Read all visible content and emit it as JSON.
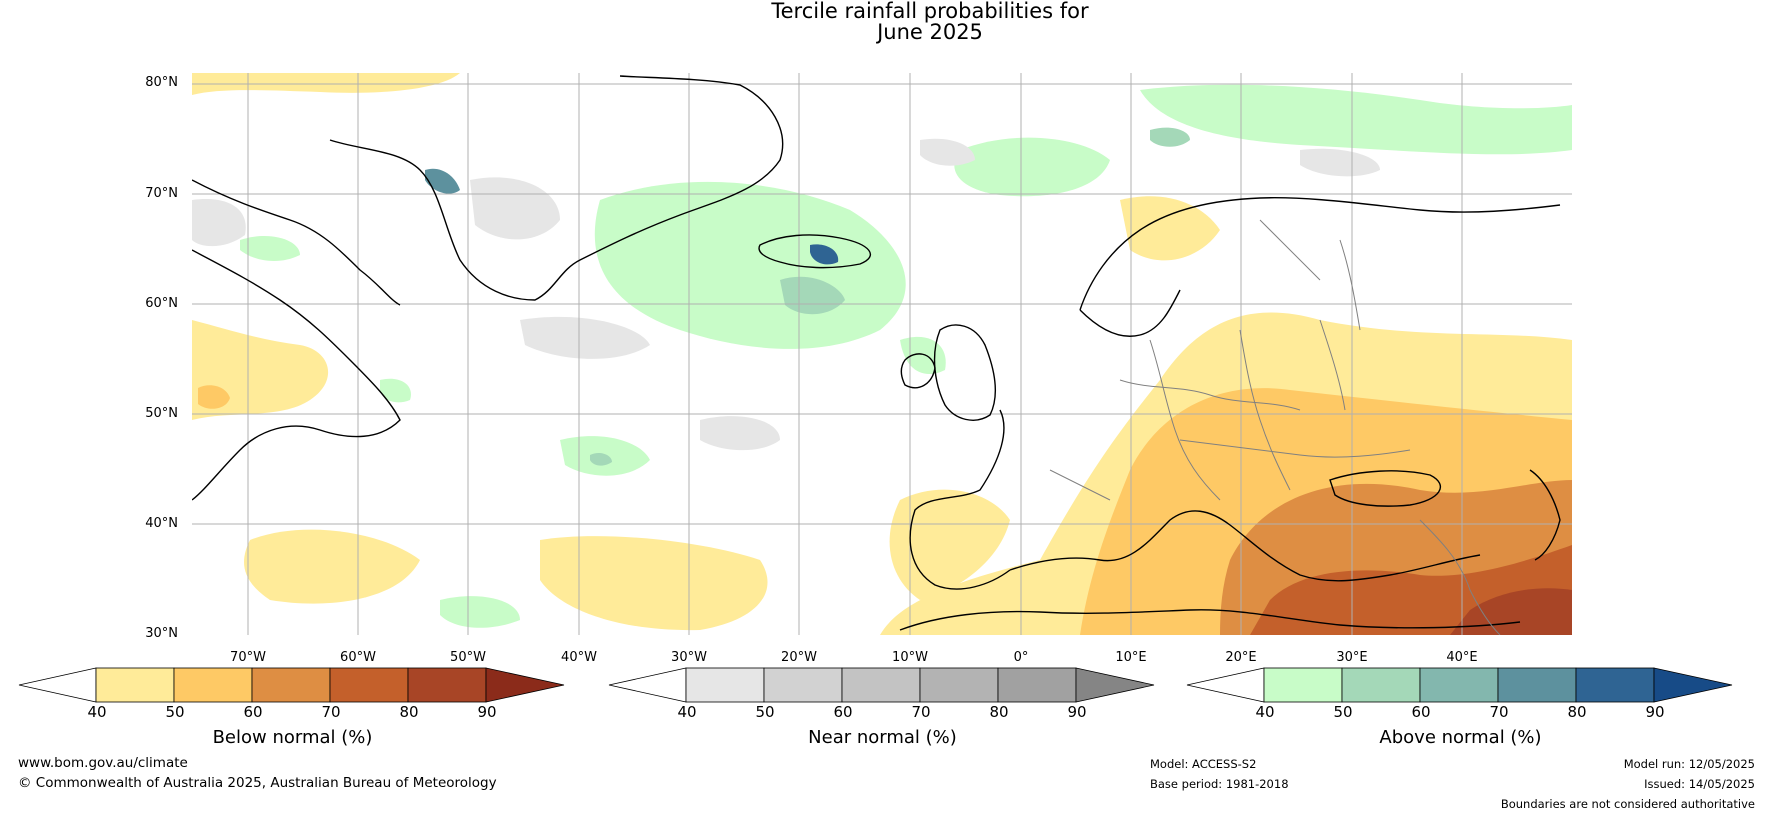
{
  "title": {
    "line1": "Tercile rainfall probabilities for",
    "line2": "June 2025"
  },
  "map": {
    "latitudes": [
      "80°N",
      "70°N",
      "60°N",
      "50°N",
      "40°N",
      "30°N"
    ],
    "longitudes": [
      "70°W",
      "60°W",
      "50°W",
      "40°W",
      "30°W",
      "20°W",
      "10°W",
      "0°",
      "10°E",
      "20°E",
      "30°E",
      "40°E"
    ],
    "ocean_color": "#ffffff",
    "coast_color": "#000000",
    "border_color": "#808080"
  },
  "colorbars": [
    {
      "name": "below",
      "title": "Below normal (%)",
      "ticks": [
        "40",
        "50",
        "60",
        "70",
        "80",
        "90"
      ],
      "under_color": "#ffffff",
      "colors": [
        "#ffeb99",
        "#fec965",
        "#de8e43",
        "#c4602b",
        "#a84526"
      ],
      "over_color": "#8b2b1a"
    },
    {
      "name": "near",
      "title": "Near normal (%)",
      "ticks": [
        "40",
        "50",
        "60",
        "70",
        "80",
        "90"
      ],
      "under_color": "#ffffff",
      "colors": [
        "#e6e6e6",
        "#d2d2d2",
        "#c3c3c3",
        "#b3b3b3",
        "#a1a1a1"
      ],
      "over_color": "#858585"
    },
    {
      "name": "above",
      "title": "Above normal (%)",
      "ticks": [
        "40",
        "50",
        "60",
        "70",
        "80",
        "90"
      ],
      "under_color": "#ffffff",
      "colors": [
        "#c8fcc8",
        "#a4d8b8",
        "#83b7ae",
        "#5d919e",
        "#2f6493"
      ],
      "over_color": "#174b87"
    }
  ],
  "footer": {
    "website": "www.bom.gov.au/climate",
    "copyright": "© Commonwealth of Australia 2025, Australian Bureau of Meteorology",
    "model": "Model: ACCESS-S2",
    "base_period": "Base period: 1981-2018",
    "model_run": "Model run: 12/05/2025",
    "issued": "Issued: 14/05/2025",
    "disclaimer": "Boundaries are not considered authoritative"
  }
}
